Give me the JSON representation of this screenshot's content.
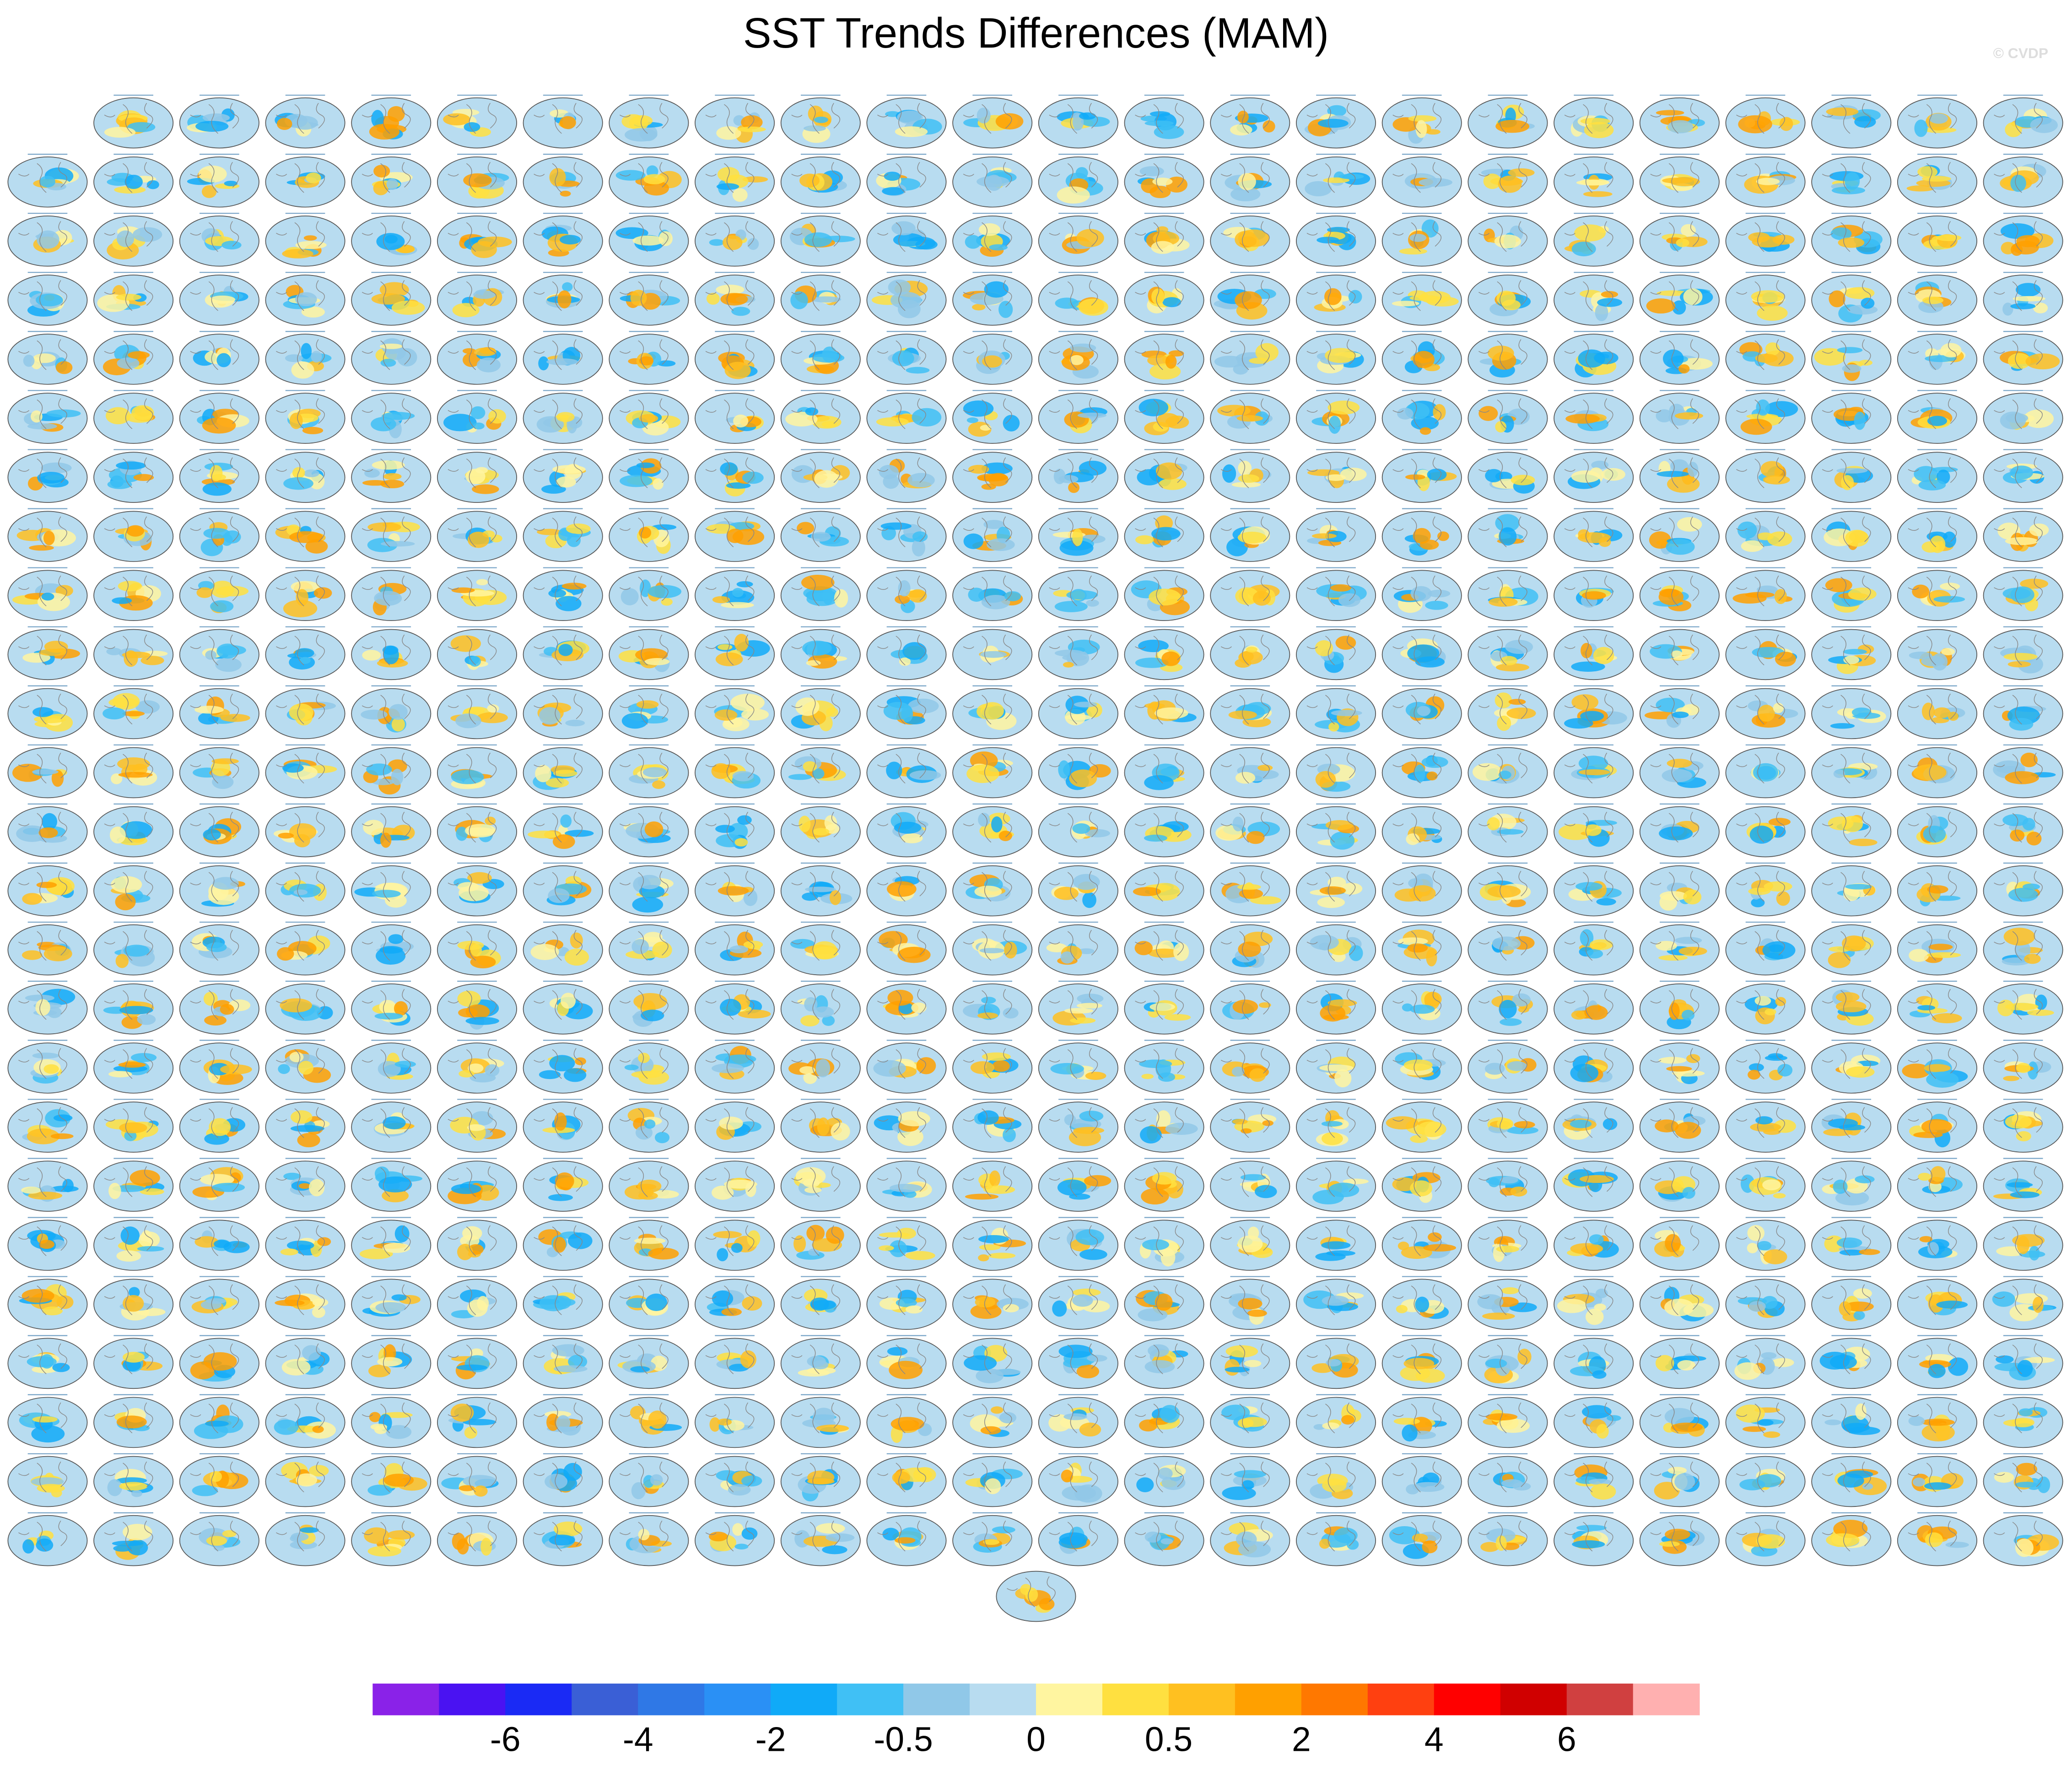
{
  "title": "SST Trends Differences (MAM)",
  "watermark": "© CVDP",
  "colorbar": {
    "colors": [
      "#8a22e8",
      "#4a12f2",
      "#1a2af5",
      "#3a5fd6",
      "#2f78e6",
      "#2a90f5",
      "#10aaf8",
      "#40c0f5",
      "#90c8e8",
      "#b8dcf0",
      "#fff5a0",
      "#ffe040",
      "#ffc020",
      "#ffa000",
      "#ff7800",
      "#ff4010",
      "#ff0000",
      "#d00000",
      "#d04040",
      "#ffb0b0"
    ],
    "labels": [
      -6,
      -4,
      -2,
      -0.5,
      0,
      0.5,
      2,
      4,
      6
    ]
  }
}
